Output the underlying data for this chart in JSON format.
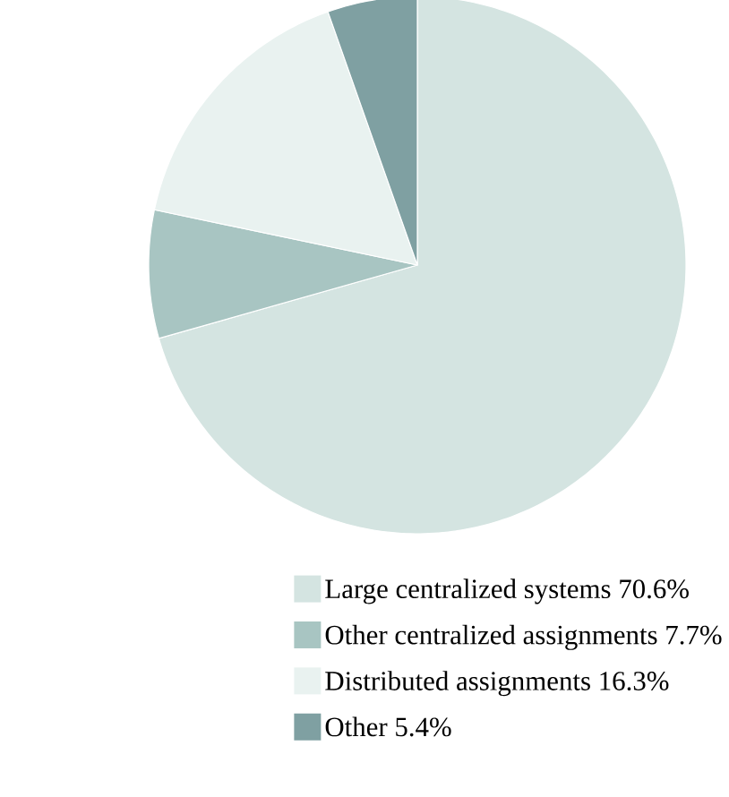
{
  "chart_data": {
    "type": "pie",
    "categories": [
      "Large centralized systems 70.6%",
      "Other centralized assignments 7.7%",
      "Distributed assignments 16.3%",
      "Other 5.4%"
    ],
    "values": [
      70.6,
      7.7,
      16.3,
      5.4
    ],
    "colors": [
      "#d4e4e1",
      "#a8c5c2",
      "#e9f2f0",
      "#7fa0a2"
    ],
    "legend": "bottom"
  }
}
